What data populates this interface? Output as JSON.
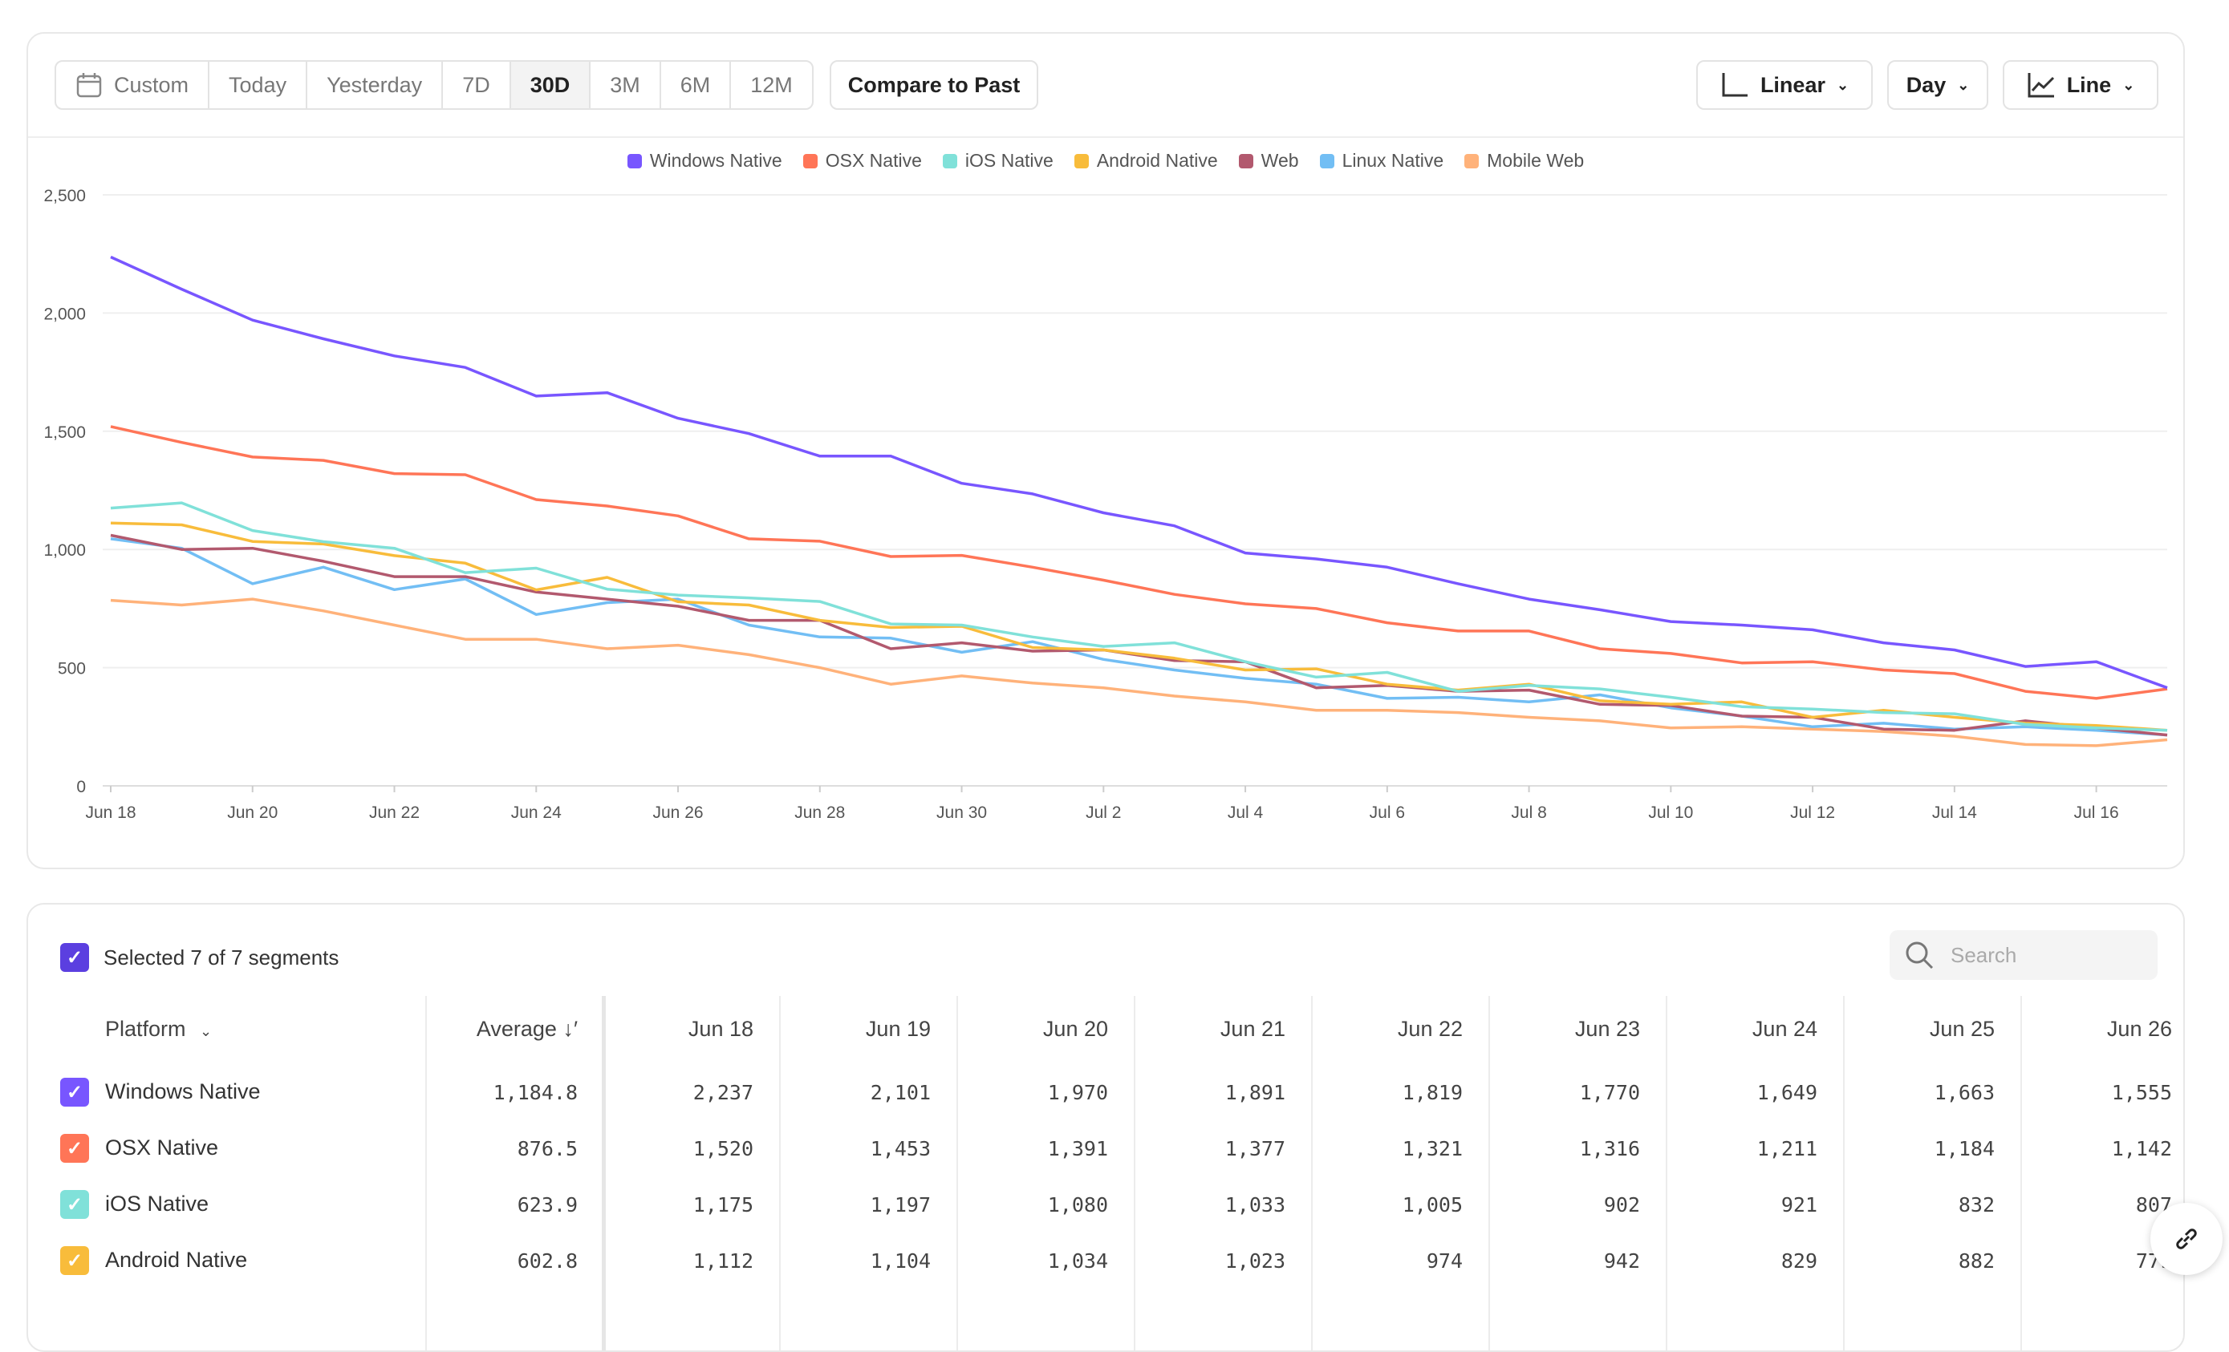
{
  "toolbar": {
    "date_ranges": [
      "Custom",
      "Today",
      "Yesterday",
      "7D",
      "30D",
      "3M",
      "6M",
      "12M"
    ],
    "active_range": "30D",
    "compare_label": "Compare to Past",
    "scale_label": "Linear",
    "interval_label": "Day",
    "chart_type_label": "Line"
  },
  "chart_data": {
    "type": "line",
    "title": "",
    "xlabel": "",
    "ylabel": "",
    "ylim": [
      0,
      2500
    ],
    "grid": true,
    "legend_placement": "top",
    "y_ticks": [
      "0",
      "500",
      "1,000",
      "1,500",
      "2,000",
      "2,500"
    ],
    "y_tick_values": [
      0,
      500,
      1000,
      1500,
      2000,
      2500
    ],
    "x": [
      "Jun 18",
      "Jun 19",
      "Jun 20",
      "Jun 21",
      "Jun 22",
      "Jun 23",
      "Jun 24",
      "Jun 25",
      "Jun 26",
      "Jun 27",
      "Jun 28",
      "Jun 29",
      "Jun 30",
      "Jul 1",
      "Jul 2",
      "Jul 3",
      "Jul 4",
      "Jul 5",
      "Jul 6",
      "Jul 7",
      "Jul 8",
      "Jul 9",
      "Jul 10",
      "Jul 11",
      "Jul 12",
      "Jul 13",
      "Jul 14",
      "Jul 15",
      "Jul 16",
      "Jul 17"
    ],
    "x_ticks": [
      "Jun 18",
      "Jun 20",
      "Jun 22",
      "Jun 24",
      "Jun 26",
      "Jun 28",
      "Jun 30",
      "Jul 2",
      "Jul 4",
      "Jul 6",
      "Jul 8",
      "Jul 10",
      "Jul 12",
      "Jul 14",
      "Jul 16"
    ],
    "series": [
      {
        "name": "Windows Native",
        "color": "#7856FF",
        "values": [
          2237,
          2101,
          1970,
          1891,
          1819,
          1770,
          1649,
          1663,
          1555,
          1490,
          1395,
          1395,
          1280,
          1235,
          1155,
          1100,
          985,
          960,
          925,
          855,
          790,
          745,
          695,
          680,
          660,
          605,
          575,
          505,
          525,
          415
        ]
      },
      {
        "name": "OSX Native",
        "color": "#FF7557",
        "values": [
          1520,
          1453,
          1391,
          1377,
          1321,
          1316,
          1211,
          1184,
          1142,
          1045,
          1035,
          970,
          975,
          925,
          870,
          810,
          770,
          750,
          690,
          655,
          655,
          580,
          560,
          520,
          525,
          490,
          475,
          400,
          370,
          410
        ]
      },
      {
        "name": "iOS Native",
        "color": "#80E1D9",
        "values": [
          1175,
          1197,
          1080,
          1033,
          1005,
          902,
          921,
          832,
          807,
          795,
          780,
          685,
          680,
          630,
          590,
          605,
          525,
          460,
          480,
          400,
          425,
          410,
          375,
          335,
          325,
          310,
          305,
          260,
          245,
          235
        ]
      },
      {
        "name": "Android Native",
        "color": "#F8BC3B",
        "values": [
          1112,
          1104,
          1034,
          1023,
          974,
          942,
          829,
          882,
          779,
          765,
          700,
          670,
          675,
          585,
          575,
          540,
          490,
          495,
          430,
          405,
          430,
          360,
          345,
          355,
          290,
          320,
          290,
          265,
          255,
          235
        ]
      },
      {
        "name": "Web",
        "color": "#B2596E",
        "values": [
          1060,
          1000,
          1005,
          950,
          885,
          885,
          820,
          790,
          760,
          700,
          700,
          580,
          605,
          570,
          575,
          530,
          525,
          415,
          425,
          400,
          405,
          345,
          340,
          295,
          290,
          240,
          235,
          275,
          245,
          215
        ]
      },
      {
        "name": "Linux Native",
        "color": "#72BEF4",
        "values": [
          1045,
          1005,
          855,
          925,
          830,
          875,
          725,
          775,
          790,
          680,
          630,
          625,
          565,
          610,
          535,
          490,
          455,
          430,
          370,
          375,
          355,
          385,
          330,
          295,
          250,
          265,
          240,
          250,
          235,
          215
        ]
      },
      {
        "name": "Mobile Web",
        "color": "#FFB27A",
        "values": [
          785,
          765,
          790,
          740,
          680,
          620,
          620,
          580,
          595,
          555,
          500,
          430,
          465,
          435,
          415,
          380,
          355,
          320,
          320,
          310,
          290,
          275,
          245,
          250,
          240,
          230,
          210,
          175,
          170,
          195
        ]
      }
    ]
  },
  "table": {
    "selection_label": "Selected 7 of 7 segments",
    "search_placeholder": "Search",
    "platform_header": "Platform",
    "average_header": "Average",
    "date_headers": [
      "Jun 18",
      "Jun 19",
      "Jun 20",
      "Jun 21",
      "Jun 22",
      "Jun 23",
      "Jun 24",
      "Jun 25",
      "Jun 26"
    ],
    "rows": [
      {
        "name": "Windows Native",
        "color": "#7856FF",
        "average": "1,184.8",
        "values": [
          "2,237",
          "2,101",
          "1,970",
          "1,891",
          "1,819",
          "1,770",
          "1,649",
          "1,663",
          "1,555"
        ]
      },
      {
        "name": "OSX Native",
        "color": "#FF7557",
        "average": "876.5",
        "values": [
          "1,520",
          "1,453",
          "1,391",
          "1,377",
          "1,321",
          "1,316",
          "1,211",
          "1,184",
          "1,142"
        ]
      },
      {
        "name": "iOS Native",
        "color": "#80E1D9",
        "average": "623.9",
        "values": [
          "1,175",
          "1,197",
          "1,080",
          "1,033",
          "1,005",
          "902",
          "921",
          "832",
          "807"
        ]
      },
      {
        "name": "Android Native",
        "color": "#F8BC3B",
        "average": "602.8",
        "values": [
          "1,112",
          "1,104",
          "1,034",
          "1,023",
          "974",
          "942",
          "829",
          "882",
          "779"
        ]
      }
    ]
  }
}
